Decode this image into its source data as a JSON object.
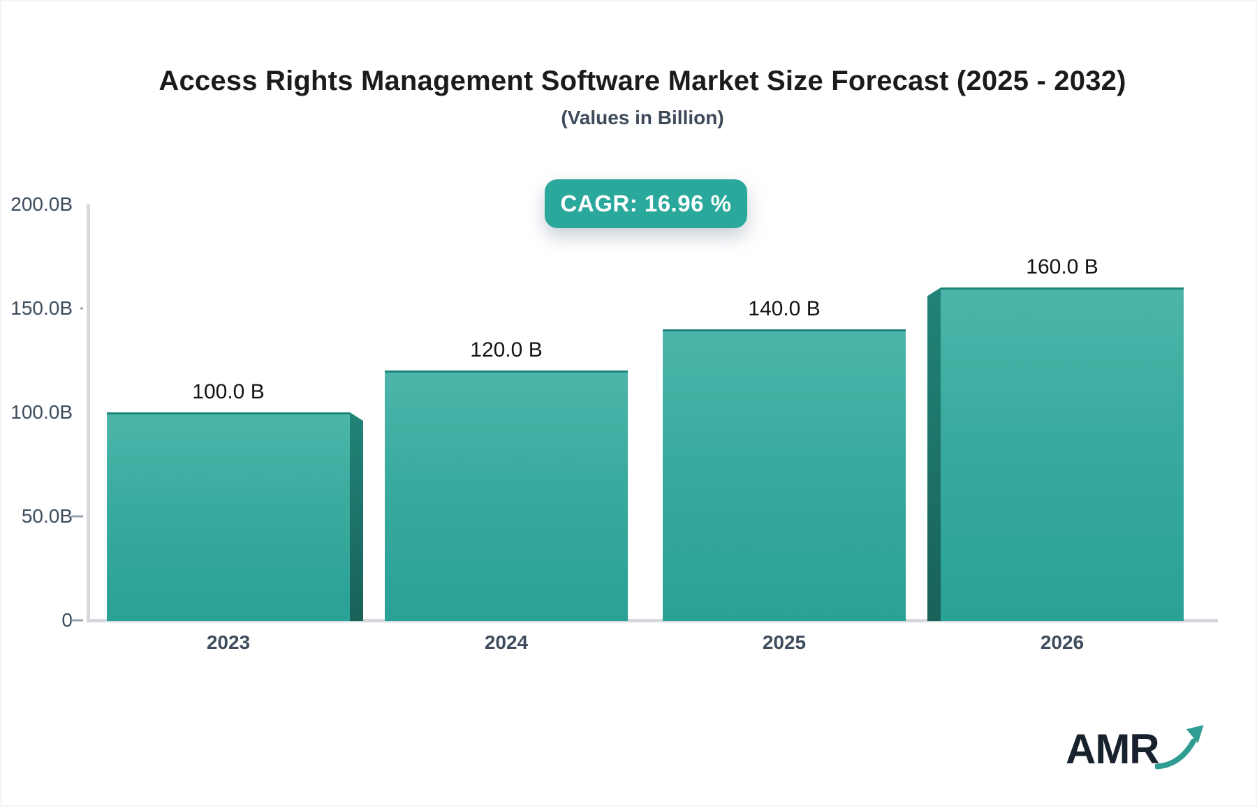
{
  "header": {
    "title": "Access Rights Management Software Market Size Forecast (2025 - 2032)",
    "subtitle": "(Values in Billion)"
  },
  "badge": {
    "label": "CAGR: 16.96 %"
  },
  "logo": {
    "text": "AMR",
    "arrow_icon": "trend-up-arrow-icon"
  },
  "colors": {
    "accent_teal": "#2aa89c",
    "bar_face_top": "#4db5aa",
    "bar_face_bottom": "#2aa195",
    "bar_top_edge": "#1b8478",
    "bar_side_face": "#1f7168",
    "axis_line": "#d5d8dd",
    "axis_text": "#3e4c5e",
    "title_text": "#1b1b1b",
    "badge_text": "#ffffff",
    "logo_navy": "#18222e",
    "logo_teal": "#2f9d92"
  },
  "chart_data": {
    "type": "bar",
    "title": "Access Rights Management Software Market Size Forecast (2025 - 2032)",
    "subtitle": "(Values in Billion)",
    "categories": [
      "2023",
      "2024",
      "2025",
      "2026"
    ],
    "values": [
      100,
      120,
      140,
      160
    ],
    "bar_labels": [
      "100.0 B",
      "120.0 B",
      "140.0 B",
      "160.0 B"
    ],
    "bar_3d_extrusion": [
      "right",
      "none",
      "none",
      "left"
    ],
    "xlabel": "",
    "ylabel": "",
    "ylim": [
      0,
      200
    ],
    "grid": false,
    "legend": false,
    "yticks": [
      {
        "value": 200,
        "label": "200.0B",
        "dash": "none"
      },
      {
        "value": 150,
        "label": "150.0B",
        "dash": "dot"
      },
      {
        "value": 100,
        "label": "100.0B",
        "dash": "none"
      },
      {
        "value": 50,
        "label": "50.0B",
        "dash": "line"
      },
      {
        "value": 0,
        "label": "0",
        "dash": "line"
      }
    ]
  }
}
